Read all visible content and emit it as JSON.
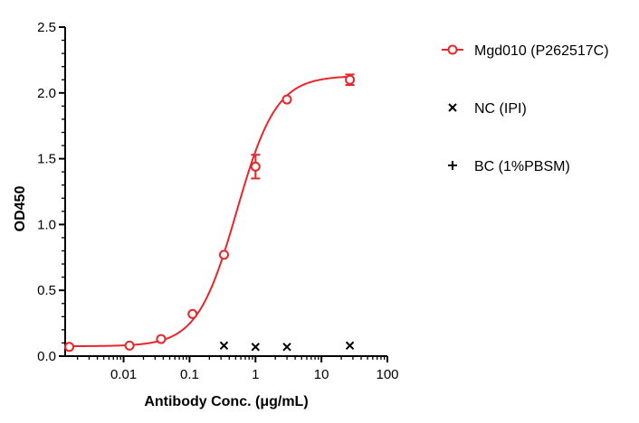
{
  "chart_data": {
    "type": "scatter",
    "xlabel": "Antibody Conc. (μg/mL)",
    "ylabel": "OD450",
    "x_scale": "log",
    "xlim": [
      0.0013,
      100
    ],
    "ylim": [
      0,
      2.5
    ],
    "x_ticks": [
      {
        "value": 0.01,
        "label": "0.01"
      },
      {
        "value": 0.1,
        "label": "0.1"
      },
      {
        "value": 1,
        "label": "1"
      },
      {
        "value": 10,
        "label": "10"
      },
      {
        "value": 100,
        "label": "100"
      }
    ],
    "y_ticks": [
      {
        "value": 0,
        "label": "0.0"
      },
      {
        "value": 0.5,
        "label": "0.5"
      },
      {
        "value": 1.0,
        "label": "1.0"
      },
      {
        "value": 1.5,
        "label": "1.5"
      },
      {
        "value": 2.0,
        "label": "2.0"
      },
      {
        "value": 2.5,
        "label": "2.5"
      }
    ],
    "legend_position": "right",
    "series": [
      {
        "name": "Mgd010 (P262517C)",
        "color": "#e8262a",
        "marker": "circle-open",
        "x": [
          0.0015,
          0.0123,
          0.037,
          0.111,
          0.333,
          1.0,
          3.0,
          27.0
        ],
        "y": [
          0.07,
          0.08,
          0.13,
          0.32,
          0.77,
          1.44,
          1.95,
          2.1
        ],
        "error": [
          0.0,
          0.0,
          0.0,
          0.0,
          0.0,
          0.09,
          0.0,
          0.04
        ],
        "fit": {
          "bottom": 0.075,
          "top": 2.13,
          "ec50": 0.52,
          "hill": 1.45
        }
      },
      {
        "name": "NC (IPI)",
        "color": "#000000",
        "marker": "x",
        "x": [
          0.333,
          1.0,
          3.0,
          27.0
        ],
        "y": [
          0.08,
          0.07,
          0.07,
          0.08
        ]
      },
      {
        "name": "BC (1%PBSM)",
        "color": "#000000",
        "marker": "plus",
        "x": [],
        "y": []
      }
    ]
  }
}
